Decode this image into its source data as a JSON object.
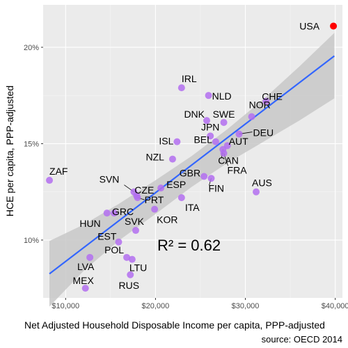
{
  "chart_data": {
    "type": "scatter",
    "xlabel": "Net Adjusted Household Disposable Income per capita, PPP-adjusted",
    "ylabel": "HCE per capita, PPP-adjusted",
    "caption": "source: OECD 2014",
    "annotation": "R² = 0.62",
    "xlim": [
      7500,
      40800
    ],
    "ylim": [
      7.0,
      22.2
    ],
    "x_ticks": [
      10000,
      20000,
      30000,
      40000
    ],
    "x_tick_labels": [
      "$10,000",
      "$20,000",
      "$30,000",
      "$40,000"
    ],
    "y_ticks": [
      10,
      15,
      20
    ],
    "y_tick_labels": [
      "10%",
      "15%",
      "20%"
    ],
    "grid": true,
    "colors": {
      "panel": "#ebebeb",
      "grid_major": "#ffffff",
      "grid_minor": "#f5f5f5",
      "point": "#b36ff0",
      "highlight": "#ff0000",
      "trend_line": "#3366ff",
      "confidence_band": "#c8c8c8"
    },
    "trend": {
      "x": [
        8200,
        39900
      ],
      "y": [
        8.25,
        19.55
      ]
    },
    "confidence_band": {
      "x": [
        8200,
        12000,
        16000,
        20000,
        24000,
        28000,
        32000,
        36000,
        39900
      ],
      "upper": [
        9.95,
        10.8,
        11.9,
        13.1,
        14.35,
        15.75,
        17.3,
        19.0,
        20.75
      ],
      "lower": [
        6.55,
        8.4,
        10.0,
        11.35,
        12.75,
        14.0,
        15.1,
        16.2,
        17.35
      ]
    },
    "points": [
      {
        "label": "USA",
        "x": 39800,
        "y": 21.1,
        "highlight": true
      },
      {
        "label": "IRL",
        "x": 22900,
        "y": 17.9
      },
      {
        "label": "NLD",
        "x": 25900,
        "y": 17.5
      },
      {
        "label": "CHE",
        "x": 32300,
        "y": 17.2
      },
      {
        "label": "NOR",
        "x": 30700,
        "y": 16.4
      },
      {
        "label": "DNK",
        "x": 25700,
        "y": 16.2
      },
      {
        "label": "SWE",
        "x": 27600,
        "y": 16.1
      },
      {
        "label": "JPN",
        "x": 26100,
        "y": 15.4
      },
      {
        "label": "DEU",
        "x": 29300,
        "y": 15.5
      },
      {
        "label": "AUT",
        "x": 28000,
        "y": 14.9
      },
      {
        "label": "BEL",
        "x": 26700,
        "y": 15.1
      },
      {
        "label": "ISL",
        "x": 22400,
        "y": 15.1
      },
      {
        "label": "CAN",
        "x": 27500,
        "y": 14.7
      },
      {
        "label": "NZL",
        "x": 21900,
        "y": 14.2
      },
      {
        "label": "FRA",
        "x": 27600,
        "y": 14.5
      },
      {
        "label": "GBR",
        "x": 25400,
        "y": 13.3
      },
      {
        "label": "FIN",
        "x": 26200,
        "y": 13.2
      },
      {
        "label": "AUS",
        "x": 31200,
        "y": 12.5
      },
      {
        "label": "ZAF",
        "x": 8200,
        "y": 13.1
      },
      {
        "label": "SVN",
        "x": 17600,
        "y": 12.5
      },
      {
        "label": "CZE",
        "x": 17900,
        "y": 12.3
      },
      {
        "label": "ESP",
        "x": 20600,
        "y": 12.7
      },
      {
        "label": "PRT",
        "x": 18000,
        "y": 12.2
      },
      {
        "label": "ITA",
        "x": 22900,
        "y": 12.2
      },
      {
        "label": "GRC",
        "x": 15400,
        "y": 11.4
      },
      {
        "label": "HUN",
        "x": 14600,
        "y": 11.4
      },
      {
        "label": "KOR",
        "x": 19900,
        "y": 11.6
      },
      {
        "label": "SVK",
        "x": 17800,
        "y": 10.5
      },
      {
        "label": "EST",
        "x": 15900,
        "y": 9.9
      },
      {
        "label": "POL",
        "x": 16800,
        "y": 9.1
      },
      {
        "label": "LVA",
        "x": 12700,
        "y": 9.1
      },
      {
        "label": "LTU",
        "x": 17400,
        "y": 9.0
      },
      {
        "label": "RUS",
        "x": 17200,
        "y": 8.2
      },
      {
        "label": "MEX",
        "x": 12200,
        "y": 7.5
      }
    ]
  }
}
